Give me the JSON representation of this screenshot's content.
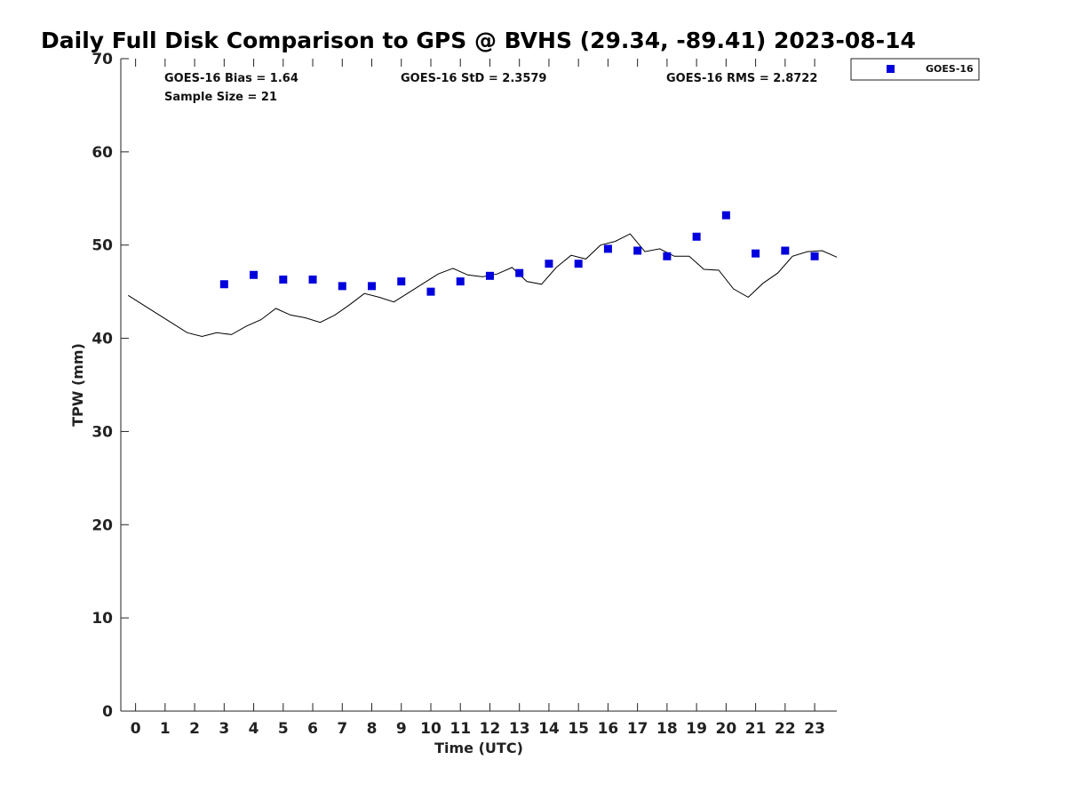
{
  "chart_data": {
    "type": "scatter",
    "title": "Daily Full Disk Comparison to GPS @ BVHS (29.34, -89.41) 2023-08-14",
    "xlabel": "Time (UTC)",
    "ylabel": "TPW (mm)",
    "xlim": [
      -0.5,
      23.75
    ],
    "ylim": [
      0,
      70
    ],
    "x_ticks": [
      0,
      1,
      2,
      3,
      4,
      5,
      6,
      7,
      8,
      9,
      10,
      11,
      12,
      13,
      14,
      15,
      16,
      17,
      18,
      19,
      20,
      21,
      22,
      23
    ],
    "y_ticks": [
      0,
      10,
      20,
      30,
      40,
      50,
      60,
      70
    ],
    "grid": false,
    "stats": {
      "bias": "GOES-16 Bias = 1.64",
      "std": "GOES-16 StD = 2.3579",
      "rms": "GOES-16 RMS = 2.8722",
      "sample": "Sample Size = 21"
    },
    "legend": {
      "position": "top-right",
      "entries": [
        "GOES-16"
      ]
    },
    "series": [
      {
        "name": "GOES-16",
        "kind": "markers",
        "color": "#0000dd",
        "x": [
          3,
          4,
          5,
          6,
          7,
          8,
          9,
          10,
          11,
          12,
          13,
          14,
          15,
          16,
          17,
          18,
          19,
          20,
          21,
          22,
          23
        ],
        "y": [
          45.8,
          46.8,
          46.3,
          46.3,
          45.6,
          45.6,
          46.1,
          45.0,
          46.1,
          46.7,
          47.0,
          48.0,
          48.0,
          49.6,
          49.4,
          48.8,
          50.9,
          53.2,
          49.1,
          49.4,
          48.8
        ]
      },
      {
        "kind": "line",
        "color": "#000000",
        "x": [
          -0.25,
          0.25,
          0.75,
          1.25,
          1.75,
          2.25,
          2.75,
          3.25,
          3.75,
          4.25,
          4.75,
          5.25,
          5.75,
          6.25,
          6.75,
          7.25,
          7.75,
          8.25,
          8.75,
          9.25,
          9.75,
          10.25,
          10.75,
          11.25,
          11.75,
          12.25,
          12.75,
          13.25,
          13.75,
          14.25,
          14.75,
          15.25,
          15.75,
          16.25,
          16.75,
          17.25,
          17.75,
          18.25,
          18.75,
          19.25,
          19.75,
          20.25,
          20.75,
          21.25,
          21.75,
          22.25,
          22.75,
          23.25,
          23.75
        ],
        "y": [
          44.6,
          43.6,
          42.6,
          41.6,
          40.6,
          40.2,
          40.6,
          40.4,
          41.3,
          42.0,
          43.2,
          42.5,
          42.2,
          41.7,
          42.5,
          43.6,
          44.8,
          44.4,
          43.9,
          44.9,
          45.9,
          46.9,
          47.5,
          46.8,
          46.6,
          46.9,
          47.6,
          46.1,
          45.8,
          47.6,
          48.9,
          48.5,
          50.0,
          50.4,
          51.2,
          49.3,
          49.6,
          48.8,
          48.8,
          47.4,
          47.3,
          45.3,
          44.4,
          45.9,
          47.0,
          48.8,
          49.3,
          49.4,
          48.7
        ]
      }
    ]
  }
}
